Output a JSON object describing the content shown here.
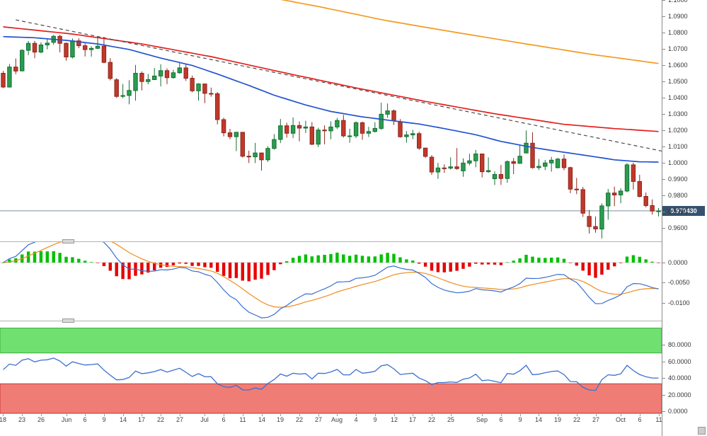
{
  "colors": {
    "candle_up": "#2a9d4e",
    "candle_up_border": "#156f35",
    "candle_down": "#c0392b",
    "candle_down_border": "#8f271d",
    "ma_blue": "#2353cf",
    "ma_red": "#e31f1f",
    "ma_orange": "#f59a23",
    "trendline": "#4a4a4a",
    "price_line": "#7f8ea0",
    "badge_bg": "#35516e",
    "badge_text": "#ffffff",
    "macd_hist_up": "#00c000",
    "macd_hist_down": "#e80000",
    "macd_line": "#3b6fd1",
    "macd_signal": "#f08c1e",
    "osc_line": "#3b6fd1",
    "band_green": "#70e070",
    "band_green_border": "#3fae3f",
    "band_red": "#ef7d76",
    "band_red_border": "#c43c31",
    "zero_line": "#d8d8d8",
    "separator": "#b3b3b3",
    "axis_line": "#8a8a8a",
    "label_text": "#333333"
  },
  "chart_data": [
    {
      "id": "price",
      "type": "candlestick",
      "current_price": 0.97043,
      "current_price_label": "0.970430",
      "y_axis_labels": [
        "1.1000",
        "1.0900",
        "1.0800",
        "1.0700",
        "1.0600",
        "1.0500",
        "1.0400",
        "1.0300",
        "1.0200",
        "1.0100",
        "1.0000",
        "0.9900",
        "0.9800",
        "0.9700",
        "0.9600"
      ],
      "y_range": {
        "max": 1.1,
        "min": 0.9517
      },
      "x_ticks": [
        [
          "18",
          0
        ],
        [
          "23",
          3
        ],
        [
          "26",
          6
        ],
        [
          "Jun",
          10
        ],
        [
          "6",
          13
        ],
        [
          "9",
          16
        ],
        [
          "14",
          19
        ],
        [
          "17",
          22
        ],
        [
          "22",
          25
        ],
        [
          "27",
          28
        ],
        [
          "Jul",
          32
        ],
        [
          "6",
          35
        ],
        [
          "11",
          38
        ],
        [
          "14",
          41
        ],
        [
          "19",
          44
        ],
        [
          "22",
          47
        ],
        [
          "27",
          50
        ],
        [
          "Aug",
          53
        ],
        [
          "4",
          56
        ],
        [
          "9",
          59
        ],
        [
          "12",
          62
        ],
        [
          "17",
          65
        ],
        [
          "22",
          68
        ],
        [
          "25",
          71
        ],
        [
          "Sep",
          76
        ],
        [
          "6",
          79
        ],
        [
          "9",
          82
        ],
        [
          "14",
          85
        ],
        [
          "19",
          88
        ],
        [
          "22",
          91
        ],
        [
          "27",
          94
        ],
        [
          "Oct",
          98
        ],
        [
          "6",
          101
        ],
        [
          "11",
          104
        ]
      ],
      "candles": [
        [
          1.055,
          1.0564,
          1.0459,
          1.0465
        ],
        [
          1.0465,
          1.0607,
          1.0462,
          1.0588
        ],
        [
          1.0588,
          1.0641,
          1.0544,
          1.0563
        ],
        [
          1.0565,
          1.0697,
          1.0561,
          1.0691
        ],
        [
          1.0691,
          1.0748,
          1.0661,
          1.0734
        ],
        [
          1.0734,
          1.0749,
          1.0642,
          1.068
        ],
        [
          1.068,
          1.074,
          1.0673,
          1.0724
        ],
        [
          1.0724,
          1.0765,
          1.0697,
          1.0735
        ],
        [
          1.074,
          1.0786,
          1.0725,
          1.0777
        ],
        [
          1.0777,
          1.0787,
          1.0678,
          1.0734
        ],
        [
          1.0734,
          1.0739,
          1.0627,
          1.065
        ],
        [
          1.065,
          1.0764,
          1.0641,
          1.0749
        ],
        [
          1.0749,
          1.0765,
          1.0704,
          1.0719
        ],
        [
          1.0719,
          1.0734,
          1.0653,
          1.0695
        ],
        [
          1.0695,
          1.0715,
          1.0652,
          1.0703
        ],
        [
          1.0703,
          1.0773,
          1.0699,
          1.0716
        ],
        [
          1.0716,
          1.0774,
          1.0611,
          1.0617
        ],
        [
          1.0617,
          1.0643,
          1.0506,
          1.0518
        ],
        [
          1.051,
          1.052,
          1.0399,
          1.0408
        ],
        [
          1.0408,
          1.0484,
          1.0397,
          1.0413
        ],
        [
          1.0413,
          1.0507,
          1.0359,
          1.0444
        ],
        [
          1.0444,
          1.0601,
          1.0381,
          1.055
        ],
        [
          1.055,
          1.0561,
          1.0444,
          1.0499
        ],
        [
          1.0499,
          1.0546,
          1.0482,
          1.0511
        ],
        [
          1.0511,
          1.0582,
          1.0508,
          1.0533
        ],
        [
          1.0533,
          1.0605,
          1.0469,
          1.0566
        ],
        [
          1.0566,
          1.058,
          1.0483,
          1.0523
        ],
        [
          1.0523,
          1.0571,
          1.0517,
          1.0553
        ],
        [
          1.0553,
          1.0615,
          1.0547,
          1.0583
        ],
        [
          1.0583,
          1.0606,
          1.0503,
          1.0519
        ],
        [
          1.0519,
          1.0536,
          1.0433,
          1.0442
        ],
        [
          1.0442,
          1.0489,
          1.0381,
          1.0484
        ],
        [
          1.0484,
          1.0486,
          1.0366,
          1.0426
        ],
        [
          1.0426,
          1.0462,
          1.0406,
          1.0424
        ],
        [
          1.0424,
          1.0435,
          1.0236,
          1.0265
        ],
        [
          1.0265,
          1.0277,
          1.0162,
          1.0184
        ],
        [
          1.0184,
          1.0208,
          1.0144,
          1.016
        ],
        [
          1.016,
          1.019,
          1.0072,
          1.0187
        ],
        [
          1.0187,
          1.0188,
          1.0032,
          1.004
        ],
        [
          1.004,
          1.0074,
          0.9999,
          1.0036
        ],
        [
          1.0036,
          1.0122,
          0.9998,
          1.006
        ],
        [
          1.006,
          1.0063,
          0.9952,
          1.0018
        ],
        [
          1.0018,
          1.0102,
          1.0006,
          1.0088
        ],
        [
          1.0088,
          1.0176,
          1.008,
          1.0143
        ],
        [
          1.0143,
          1.0269,
          1.0121,
          1.0227
        ],
        [
          1.0227,
          1.0246,
          1.0154,
          1.0181
        ],
        [
          1.0181,
          1.0278,
          1.0151,
          1.0229
        ],
        [
          1.0229,
          1.0254,
          1.0131,
          1.0213
        ],
        [
          1.0213,
          1.0258,
          1.0183,
          1.022
        ],
        [
          1.022,
          1.025,
          1.0108,
          1.0114
        ],
        [
          1.0114,
          1.0215,
          1.0096,
          1.0201
        ],
        [
          1.0201,
          1.023,
          1.0113,
          1.0196
        ],
        [
          1.0196,
          1.0254,
          1.0144,
          1.022
        ],
        [
          1.022,
          1.0275,
          1.0207,
          1.026
        ],
        [
          1.026,
          1.0294,
          1.0155,
          1.0165
        ],
        [
          1.0165,
          1.0209,
          1.0123,
          1.0165
        ],
        [
          1.0165,
          1.0254,
          1.0152,
          1.0246
        ],
        [
          1.0246,
          1.0253,
          1.0141,
          1.0181
        ],
        [
          1.0181,
          1.0221,
          1.0158,
          1.0192
        ],
        [
          1.0192,
          1.0249,
          1.0186,
          1.0211
        ],
        [
          1.0211,
          1.0369,
          1.0202,
          1.0298
        ],
        [
          1.0298,
          1.0364,
          1.0276,
          1.0319
        ],
        [
          1.0319,
          1.0327,
          1.0232,
          1.0258
        ],
        [
          1.025,
          1.0268,
          1.0154,
          1.016
        ],
        [
          1.016,
          1.0195,
          1.0123,
          1.0171
        ],
        [
          1.0171,
          1.0202,
          1.0145,
          1.0179
        ],
        [
          1.0179,
          1.0191,
          1.0079,
          1.009
        ],
        [
          1.009,
          1.0092,
          1.003,
          1.0039
        ],
        [
          1.0034,
          1.0047,
          0.9926,
          0.9943
        ],
        [
          0.9943,
          0.9999,
          0.9901,
          0.9968
        ],
        [
          0.9968,
          0.999,
          0.9938,
          0.9967
        ],
        [
          0.9967,
          1.0033,
          0.9958,
          0.9975
        ],
        [
          0.9975,
          1.009,
          0.9957,
          0.9964
        ],
        [
          0.995,
          1.0027,
          0.9914,
          0.9998
        ],
        [
          0.9998,
          1.0055,
          0.9984,
          1.0012
        ],
        [
          1.0012,
          1.0079,
          0.9972,
          1.0054
        ],
        [
          1.0054,
          1.0055,
          0.991,
          0.9945
        ],
        [
          0.9945,
          1.0033,
          0.9939,
          0.9952
        ],
        [
          0.9902,
          0.9947,
          0.9863,
          0.9928
        ],
        [
          0.9928,
          0.9987,
          0.9864,
          0.9903
        ],
        [
          0.9903,
          1.0014,
          0.9877,
          1.0007
        ],
        [
          1.0007,
          1.0029,
          0.993,
          0.9996
        ],
        [
          0.9996,
          1.0113,
          0.9993,
          1.004
        ],
        [
          1.006,
          1.0198,
          1.0058,
          1.012
        ],
        [
          1.012,
          1.0187,
          0.9964,
          0.997
        ],
        [
          0.997,
          1.0023,
          0.9955,
          0.9978
        ],
        [
          0.9978,
          1.0017,
          0.9955,
          0.9999
        ],
        [
          0.9999,
          1.0036,
          0.9945,
          1.0016
        ],
        [
          0.997,
          1.0029,
          0.9965,
          1.0023
        ],
        [
          1.0023,
          1.0051,
          0.9954,
          0.997
        ],
        [
          0.997,
          0.9976,
          0.9813,
          0.9838
        ],
        [
          0.9838,
          0.9907,
          0.9807,
          0.9835
        ],
        [
          0.9835,
          0.9852,
          0.9667,
          0.969
        ],
        [
          0.967,
          0.9709,
          0.9565,
          0.9608
        ],
        [
          0.9608,
          0.967,
          0.957,
          0.9593
        ],
        [
          0.9593,
          0.975,
          0.9535,
          0.9735
        ],
        [
          0.9735,
          0.9839,
          0.965,
          0.9814
        ],
        [
          0.9814,
          0.9853,
          0.9733,
          0.9802
        ],
        [
          0.9802,
          0.9844,
          0.9751,
          0.9826
        ],
        [
          0.9826,
          0.9999,
          0.9818,
          0.9987
        ],
        [
          0.9987,
          1.0,
          0.9835,
          0.9885
        ],
        [
          0.9885,
          0.9926,
          0.9787,
          0.9793
        ],
        [
          0.9793,
          0.9817,
          0.9726,
          0.9737
        ],
        [
          0.9737,
          0.9775,
          0.9682,
          0.9703
        ],
        [
          0.9703,
          0.9722,
          0.967,
          0.9704
        ]
      ],
      "overlays": {
        "ma_blue": [
          [
            0,
            1.0775
          ],
          [
            5,
            1.0768
          ],
          [
            10,
            1.0752
          ],
          [
            15,
            1.073
          ],
          [
            20,
            1.0696
          ],
          [
            25,
            1.0643
          ],
          [
            30,
            1.0598
          ],
          [
            34,
            1.0545
          ],
          [
            39,
            1.0475
          ],
          [
            43,
            1.0415
          ],
          [
            48,
            1.0355
          ],
          [
            52,
            1.0315
          ],
          [
            57,
            1.0282
          ],
          [
            61,
            1.0262
          ],
          [
            66,
            1.0238
          ],
          [
            70,
            1.021
          ],
          [
            75,
            1.0172
          ],
          [
            79,
            1.0131
          ],
          [
            84,
            1.0094
          ],
          [
            88,
            1.007
          ],
          [
            93,
            1.0042
          ],
          [
            97,
            1.0018
          ],
          [
            101,
            1.0006
          ],
          [
            104,
            1.0004
          ]
        ],
        "ma_red": [
          [
            0,
            1.0835
          ],
          [
            11,
            1.0791
          ],
          [
            22,
            1.073
          ],
          [
            33,
            1.0652
          ],
          [
            44,
            1.0558
          ],
          [
            56,
            1.046
          ],
          [
            67,
            1.0377
          ],
          [
            78,
            1.0301
          ],
          [
            89,
            1.0236
          ],
          [
            97,
            1.021
          ],
          [
            104,
            1.0192
          ]
        ],
        "ma_orange": [
          [
            0,
            1.1285
          ],
          [
            6,
            1.125
          ],
          [
            17,
            1.1185
          ],
          [
            28,
            1.1115
          ],
          [
            39,
            1.104
          ],
          [
            50,
            1.096
          ],
          [
            61,
            1.0872
          ],
          [
            72,
            1.08
          ],
          [
            83,
            1.073
          ],
          [
            93,
            1.0668
          ],
          [
            104,
            1.061
          ]
        ],
        "trendline": {
          "from": [
            2,
            1.0878
          ],
          "to": [
            105,
            1.0068
          ]
        }
      }
    },
    {
      "id": "macd",
      "type": "macd",
      "derived_from": "price.closes",
      "params": {
        "fast": 12,
        "slow": 26,
        "signal": 9
      },
      "y_axis_labels": [
        "0.0000",
        "-0.0050",
        "-0.0100"
      ],
      "y_range": {
        "max": 0.00509,
        "min": -0.01439
      }
    },
    {
      "id": "oscillator",
      "type": "rsi",
      "derived_from": "price.closes",
      "params": {
        "period": 14
      },
      "bands": {
        "overbought": [
          70,
          100
        ],
        "oversold": [
          -2.5,
          33
        ]
      },
      "y_axis_labels": [
        "80.0000",
        "60.0000",
        "40.0000",
        "20.0000",
        "0.0000"
      ],
      "y_range": {
        "max": 108.1,
        "min": -2.55
      }
    }
  ]
}
